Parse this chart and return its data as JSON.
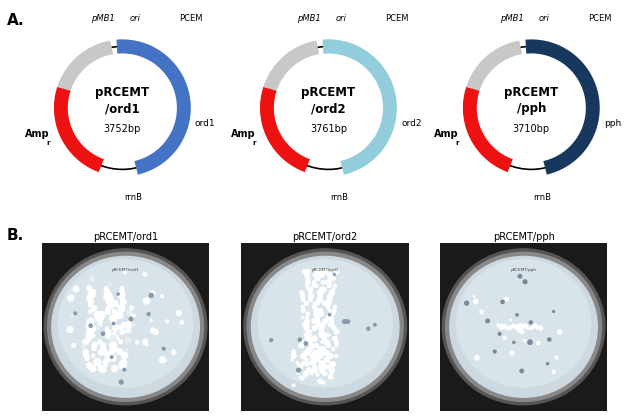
{
  "fig_width": 6.44,
  "fig_height": 4.19,
  "background_color": "#ffffff",
  "label_A": "A.",
  "label_B": "B.",
  "plasmids": [
    {
      "name": "pRCEMT\n/ord1",
      "bp": "3752bp",
      "insert_label": "ord1",
      "insert_color": "#4472C4"
    },
    {
      "name": "pRCEMT\n/ord2",
      "bp": "3761bp",
      "insert_label": "ord2",
      "insert_color": "#92CDDC"
    },
    {
      "name": "pRCEMT\n/pph",
      "bp": "3710bp",
      "insert_label": "pph",
      "insert_color": "#17375E"
    }
  ],
  "plate_labels": [
    "pRCEMT/ord1",
    "pRCEMT/ord2",
    "pRCEMT/pph"
  ],
  "red_color": "#EE1111",
  "gray_color": "#C8C8C8",
  "black_color": "#000000"
}
